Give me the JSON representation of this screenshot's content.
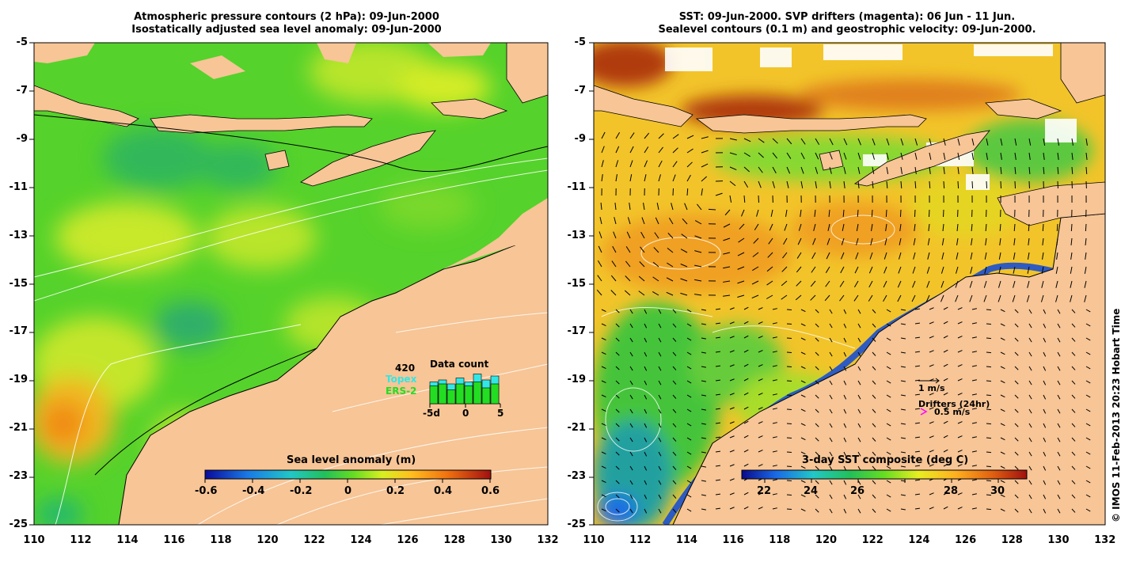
{
  "left_panel": {
    "title_line1": "Atmospheric pressure contours (2 hPa): 09-Jun-2000",
    "title_line2": "Isostatically adjusted sea level anomaly: 09-Jun-2000",
    "colorbar_title": "Sea level anomaly (m)",
    "colorbar_ticks": [
      "-0.6",
      "-0.4",
      "-0.2",
      "0",
      "0.2",
      "0.4",
      "0.6"
    ],
    "data_count": {
      "number": "420",
      "title": "Data count",
      "topex_label": "Topex",
      "ers_label": "ERS-2",
      "axis_labels": [
        "-5d",
        "0",
        "5"
      ],
      "bars_topex": [
        0.55,
        0.6,
        0.5,
        0.65,
        0.55,
        0.75,
        0.6,
        0.7
      ],
      "bars_ers": [
        0.45,
        0.5,
        0.35,
        0.5,
        0.45,
        0.55,
        0.4,
        0.5
      ]
    }
  },
  "right_panel": {
    "title_line1": "SST: 09-Jun-2000. SVP drifters (magenta): 06 Jun - 11 Jun.",
    "title_line2": "Sealevel contours (0.1 m) and geostrophic velocity: 09-Jun-2000.",
    "colorbar_title": "3-day SST composite (deg C)",
    "colorbar_ticks": [
      "22",
      "24",
      "26",
      "28",
      "30"
    ],
    "velocity_label": "1 m/s",
    "drifters_label": "Drifters (24hr)",
    "drifters_speed": "0.5 m/s"
  },
  "axes": {
    "y_labels": [
      "-5",
      "-7",
      "-9",
      "-11",
      "-13",
      "-15",
      "-17",
      "-19",
      "-21",
      "-23",
      "-25"
    ],
    "x_labels": [
      "110",
      "112",
      "114",
      "116",
      "118",
      "120",
      "122",
      "124",
      "126",
      "128",
      "130",
      "132"
    ]
  },
  "copyright": "© IMOS 11-Feb-2013 20:23 Hobart Time",
  "colors": {
    "land": "#f7c596",
    "ocean_green": "#4fd12a",
    "white": "#ffffff",
    "drifter_magenta": "#ff00ff",
    "topex_cyan": "#33e6e6",
    "ers_green": "#22dd22"
  }
}
